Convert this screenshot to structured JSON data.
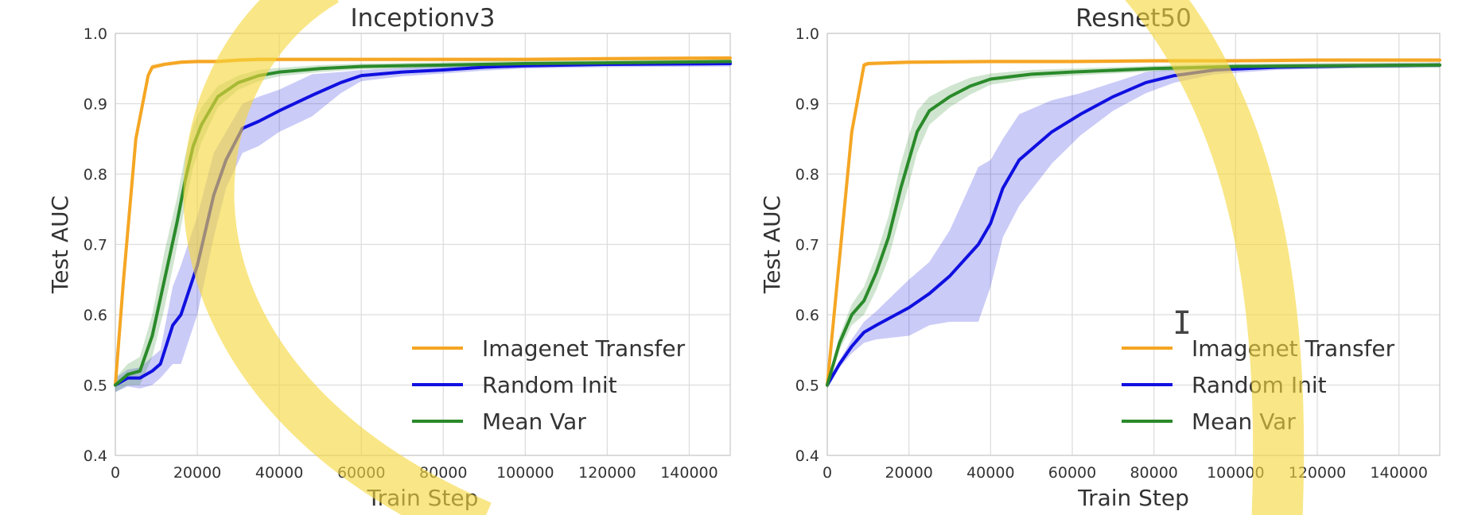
{
  "figure": {
    "highlight_color": "#f5d73c",
    "gridline_color": "#dddddd",
    "cursor_icon": "text-cursor-icon"
  },
  "chart_data": [
    {
      "type": "line",
      "title": "Inceptionv3",
      "xlabel": "Train Step",
      "ylabel": "Test AUC",
      "xlim": [
        0,
        150000
      ],
      "ylim": [
        0.4,
        1.0
      ],
      "xticks": [
        "0",
        "20000",
        "40000",
        "60000",
        "80000",
        "100000",
        "120000",
        "140000"
      ],
      "yticks": [
        "0.4",
        "0.5",
        "0.6",
        "0.7",
        "0.8",
        "0.9",
        "1.0"
      ],
      "grid": true,
      "legend_position": "lower-right",
      "series": [
        {
          "name": "Imagenet Transfer",
          "color": "#f5a623",
          "x": [
            0,
            2000,
            5000,
            8000,
            9000,
            12000,
            16000,
            20000,
            25000,
            30000,
            35000,
            40000,
            60000,
            80000,
            100000,
            120000,
            150000
          ],
          "y": [
            0.5,
            0.65,
            0.85,
            0.94,
            0.952,
            0.956,
            0.959,
            0.96,
            0.96,
            0.962,
            0.963,
            0.963,
            0.963,
            0.963,
            0.963,
            0.964,
            0.965
          ],
          "band": [
            0.008,
            0.006,
            0.006,
            0.005,
            0.004,
            0.003,
            0.003,
            0.003,
            0.003,
            0.003,
            0.003,
            0.003,
            0.003,
            0.003,
            0.003,
            0.003,
            0.003
          ]
        },
        {
          "name": "Random Init",
          "color": "#1010e0",
          "x": [
            0,
            3000,
            6000,
            9000,
            11000,
            14000,
            16000,
            20000,
            24000,
            27000,
            31000,
            35000,
            40000,
            48000,
            55000,
            60000,
            70000,
            80000,
            90000,
            100000,
            120000,
            150000
          ],
          "y": [
            0.5,
            0.51,
            0.51,
            0.52,
            0.53,
            0.585,
            0.6,
            0.67,
            0.77,
            0.82,
            0.865,
            0.875,
            0.89,
            0.912,
            0.93,
            0.94,
            0.945,
            0.948,
            0.952,
            0.954,
            0.956,
            0.957
          ],
          "band": [
            0.01,
            0.012,
            0.015,
            0.02,
            0.02,
            0.055,
            0.07,
            0.07,
            0.06,
            0.04,
            0.035,
            0.035,
            0.03,
            0.03,
            0.015,
            0.008,
            0.006,
            0.005,
            0.005,
            0.004,
            0.004,
            0.004
          ]
        },
        {
          "name": "Mean Var",
          "color": "#2a8a2a",
          "x": [
            0,
            3000,
            6000,
            9000,
            12000,
            15000,
            17000,
            19000,
            21000,
            25000,
            30000,
            35000,
            40000,
            50000,
            60000,
            80000,
            100000,
            120000,
            150000
          ],
          "y": [
            0.5,
            0.515,
            0.52,
            0.57,
            0.65,
            0.73,
            0.79,
            0.84,
            0.87,
            0.91,
            0.93,
            0.94,
            0.945,
            0.95,
            0.953,
            0.955,
            0.957,
            0.958,
            0.96
          ],
          "band": [
            0.01,
            0.015,
            0.02,
            0.03,
            0.04,
            0.035,
            0.035,
            0.03,
            0.025,
            0.015,
            0.01,
            0.008,
            0.006,
            0.005,
            0.004,
            0.004,
            0.004,
            0.004,
            0.004
          ]
        }
      ]
    },
    {
      "type": "line",
      "title": "Resnet50",
      "xlabel": "Train Step",
      "ylabel": "Test AUC",
      "xlim": [
        0,
        150000
      ],
      "ylim": [
        0.4,
        1.0
      ],
      "xticks": [
        "0",
        "20000",
        "40000",
        "60000",
        "80000",
        "100000",
        "120000",
        "140000"
      ],
      "yticks": [
        "0.4",
        "0.5",
        "0.6",
        "0.7",
        "0.8",
        "0.9",
        "1.0"
      ],
      "grid": true,
      "legend_position": "lower-right",
      "series": [
        {
          "name": "Imagenet Transfer",
          "color": "#f5a623",
          "x": [
            0,
            3000,
            6000,
            9000,
            10000,
            15000,
            20000,
            40000,
            60000,
            80000,
            100000,
            120000,
            150000
          ],
          "y": [
            0.5,
            0.68,
            0.86,
            0.955,
            0.957,
            0.958,
            0.959,
            0.96,
            0.96,
            0.961,
            0.961,
            0.962,
            0.962
          ],
          "band": [
            0.008,
            0.006,
            0.005,
            0.004,
            0.003,
            0.003,
            0.003,
            0.003,
            0.003,
            0.003,
            0.003,
            0.003,
            0.003
          ]
        },
        {
          "name": "Random Init",
          "color": "#1010e0",
          "x": [
            0,
            3000,
            6000,
            9000,
            12000,
            20000,
            25000,
            30000,
            37000,
            40000,
            43000,
            47000,
            55000,
            62000,
            70000,
            78000,
            85000,
            95000,
            110000,
            130000,
            150000
          ],
          "y": [
            0.5,
            0.53,
            0.555,
            0.575,
            0.585,
            0.61,
            0.63,
            0.655,
            0.7,
            0.73,
            0.78,
            0.82,
            0.86,
            0.885,
            0.91,
            0.93,
            0.94,
            0.948,
            0.952,
            0.954,
            0.955
          ],
          "band": [
            0.005,
            0.005,
            0.01,
            0.015,
            0.02,
            0.04,
            0.045,
            0.065,
            0.11,
            0.09,
            0.07,
            0.065,
            0.045,
            0.03,
            0.02,
            0.015,
            0.01,
            0.006,
            0.004,
            0.003,
            0.003
          ]
        },
        {
          "name": "Mean Var",
          "color": "#2a8a2a",
          "x": [
            0,
            3000,
            6000,
            9000,
            12000,
            15000,
            18000,
            20000,
            22000,
            25000,
            30000,
            35000,
            40000,
            50000,
            60000,
            80000,
            100000,
            150000
          ],
          "y": [
            0.5,
            0.56,
            0.6,
            0.62,
            0.66,
            0.71,
            0.78,
            0.82,
            0.86,
            0.89,
            0.91,
            0.925,
            0.935,
            0.942,
            0.945,
            0.95,
            0.953,
            0.955
          ],
          "band": [
            0.005,
            0.01,
            0.015,
            0.02,
            0.025,
            0.03,
            0.035,
            0.035,
            0.03,
            0.02,
            0.015,
            0.012,
            0.008,
            0.006,
            0.005,
            0.004,
            0.004,
            0.004
          ]
        }
      ]
    }
  ]
}
